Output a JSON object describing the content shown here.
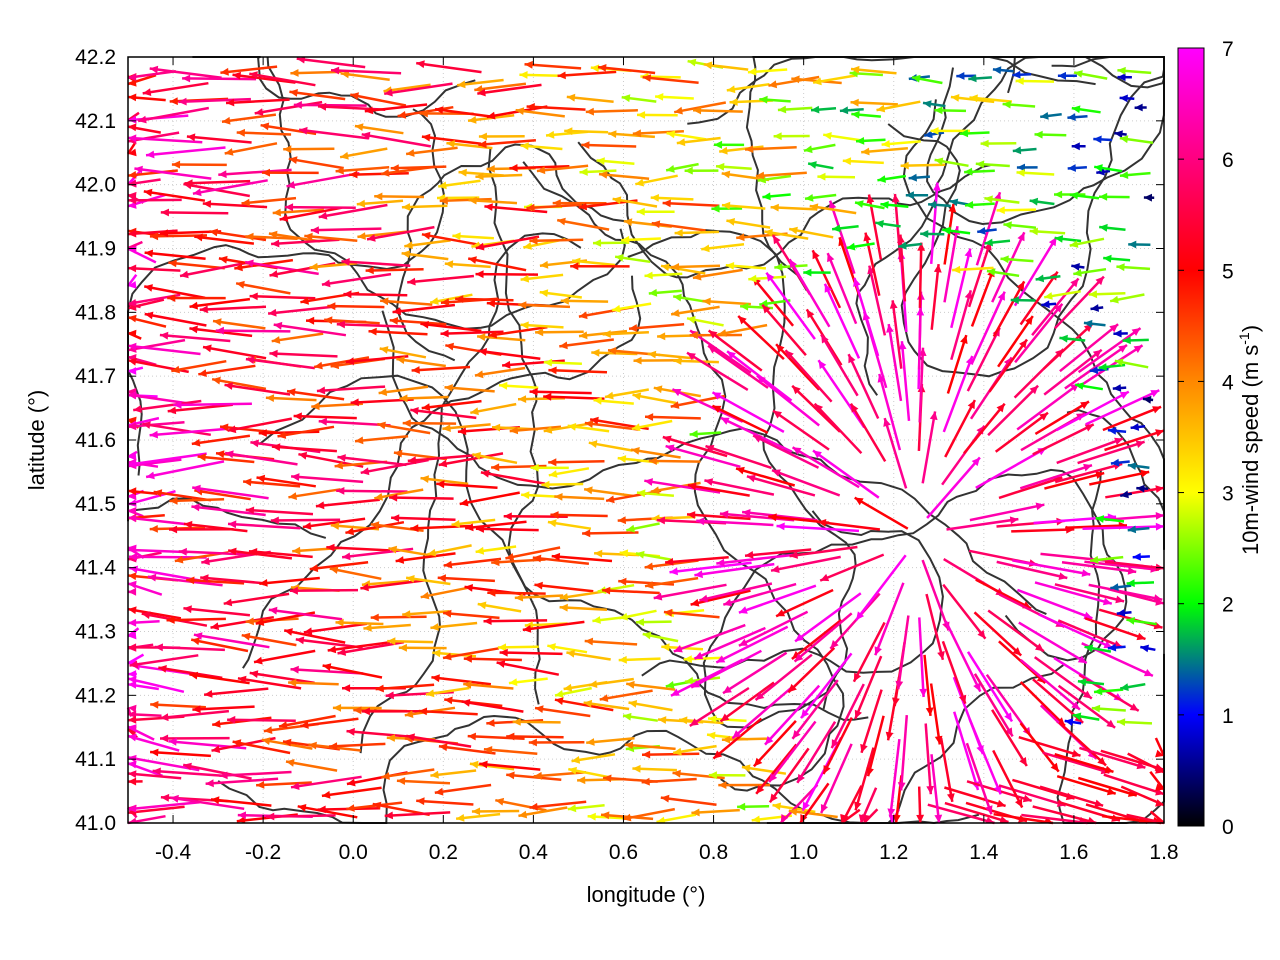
{
  "chart_data": {
    "type": "vector-field",
    "xlabel": "longitude (°)",
    "ylabel": "latitude (°)",
    "xlim": [
      -0.5,
      1.8
    ],
    "ylim": [
      41.0,
      42.2
    ],
    "xticks": [
      "-0.4",
      "-0.2",
      "0.0",
      "0.2",
      "0.4",
      "0.6",
      "0.8",
      "1.0",
      "1.2",
      "1.4",
      "1.6",
      "1.8"
    ],
    "yticks": [
      "41.0",
      "41.1",
      "41.2",
      "41.3",
      "41.4",
      "41.5",
      "41.6",
      "41.7",
      "41.8",
      "41.9",
      "42.0",
      "42.1",
      "42.2"
    ],
    "grid": true,
    "colorbar": {
      "label": "10m-wind speed (m s-1)",
      "label_main": "10m-wind speed (m s",
      "label_sup": "-1",
      "label_end": ")",
      "range": [
        0,
        7
      ],
      "ticks": [
        "0",
        "1",
        "2",
        "3",
        "4",
        "5",
        "6",
        "7"
      ],
      "colors": [
        "#000000",
        "#0000ff",
        "#00ff00",
        "#ffff00",
        "#ff8800",
        "#ff0000",
        "#ff00ff"
      ]
    },
    "field": {
      "description_units": "wind vectors colored by speed",
      "lon_step": 0.05,
      "lat_step": 0.05,
      "west_region_speed": 6,
      "east_region_speed": 1.5,
      "southeast_corner_speed": 5,
      "convergence_center": [
        1.25,
        41.45
      ]
    }
  }
}
